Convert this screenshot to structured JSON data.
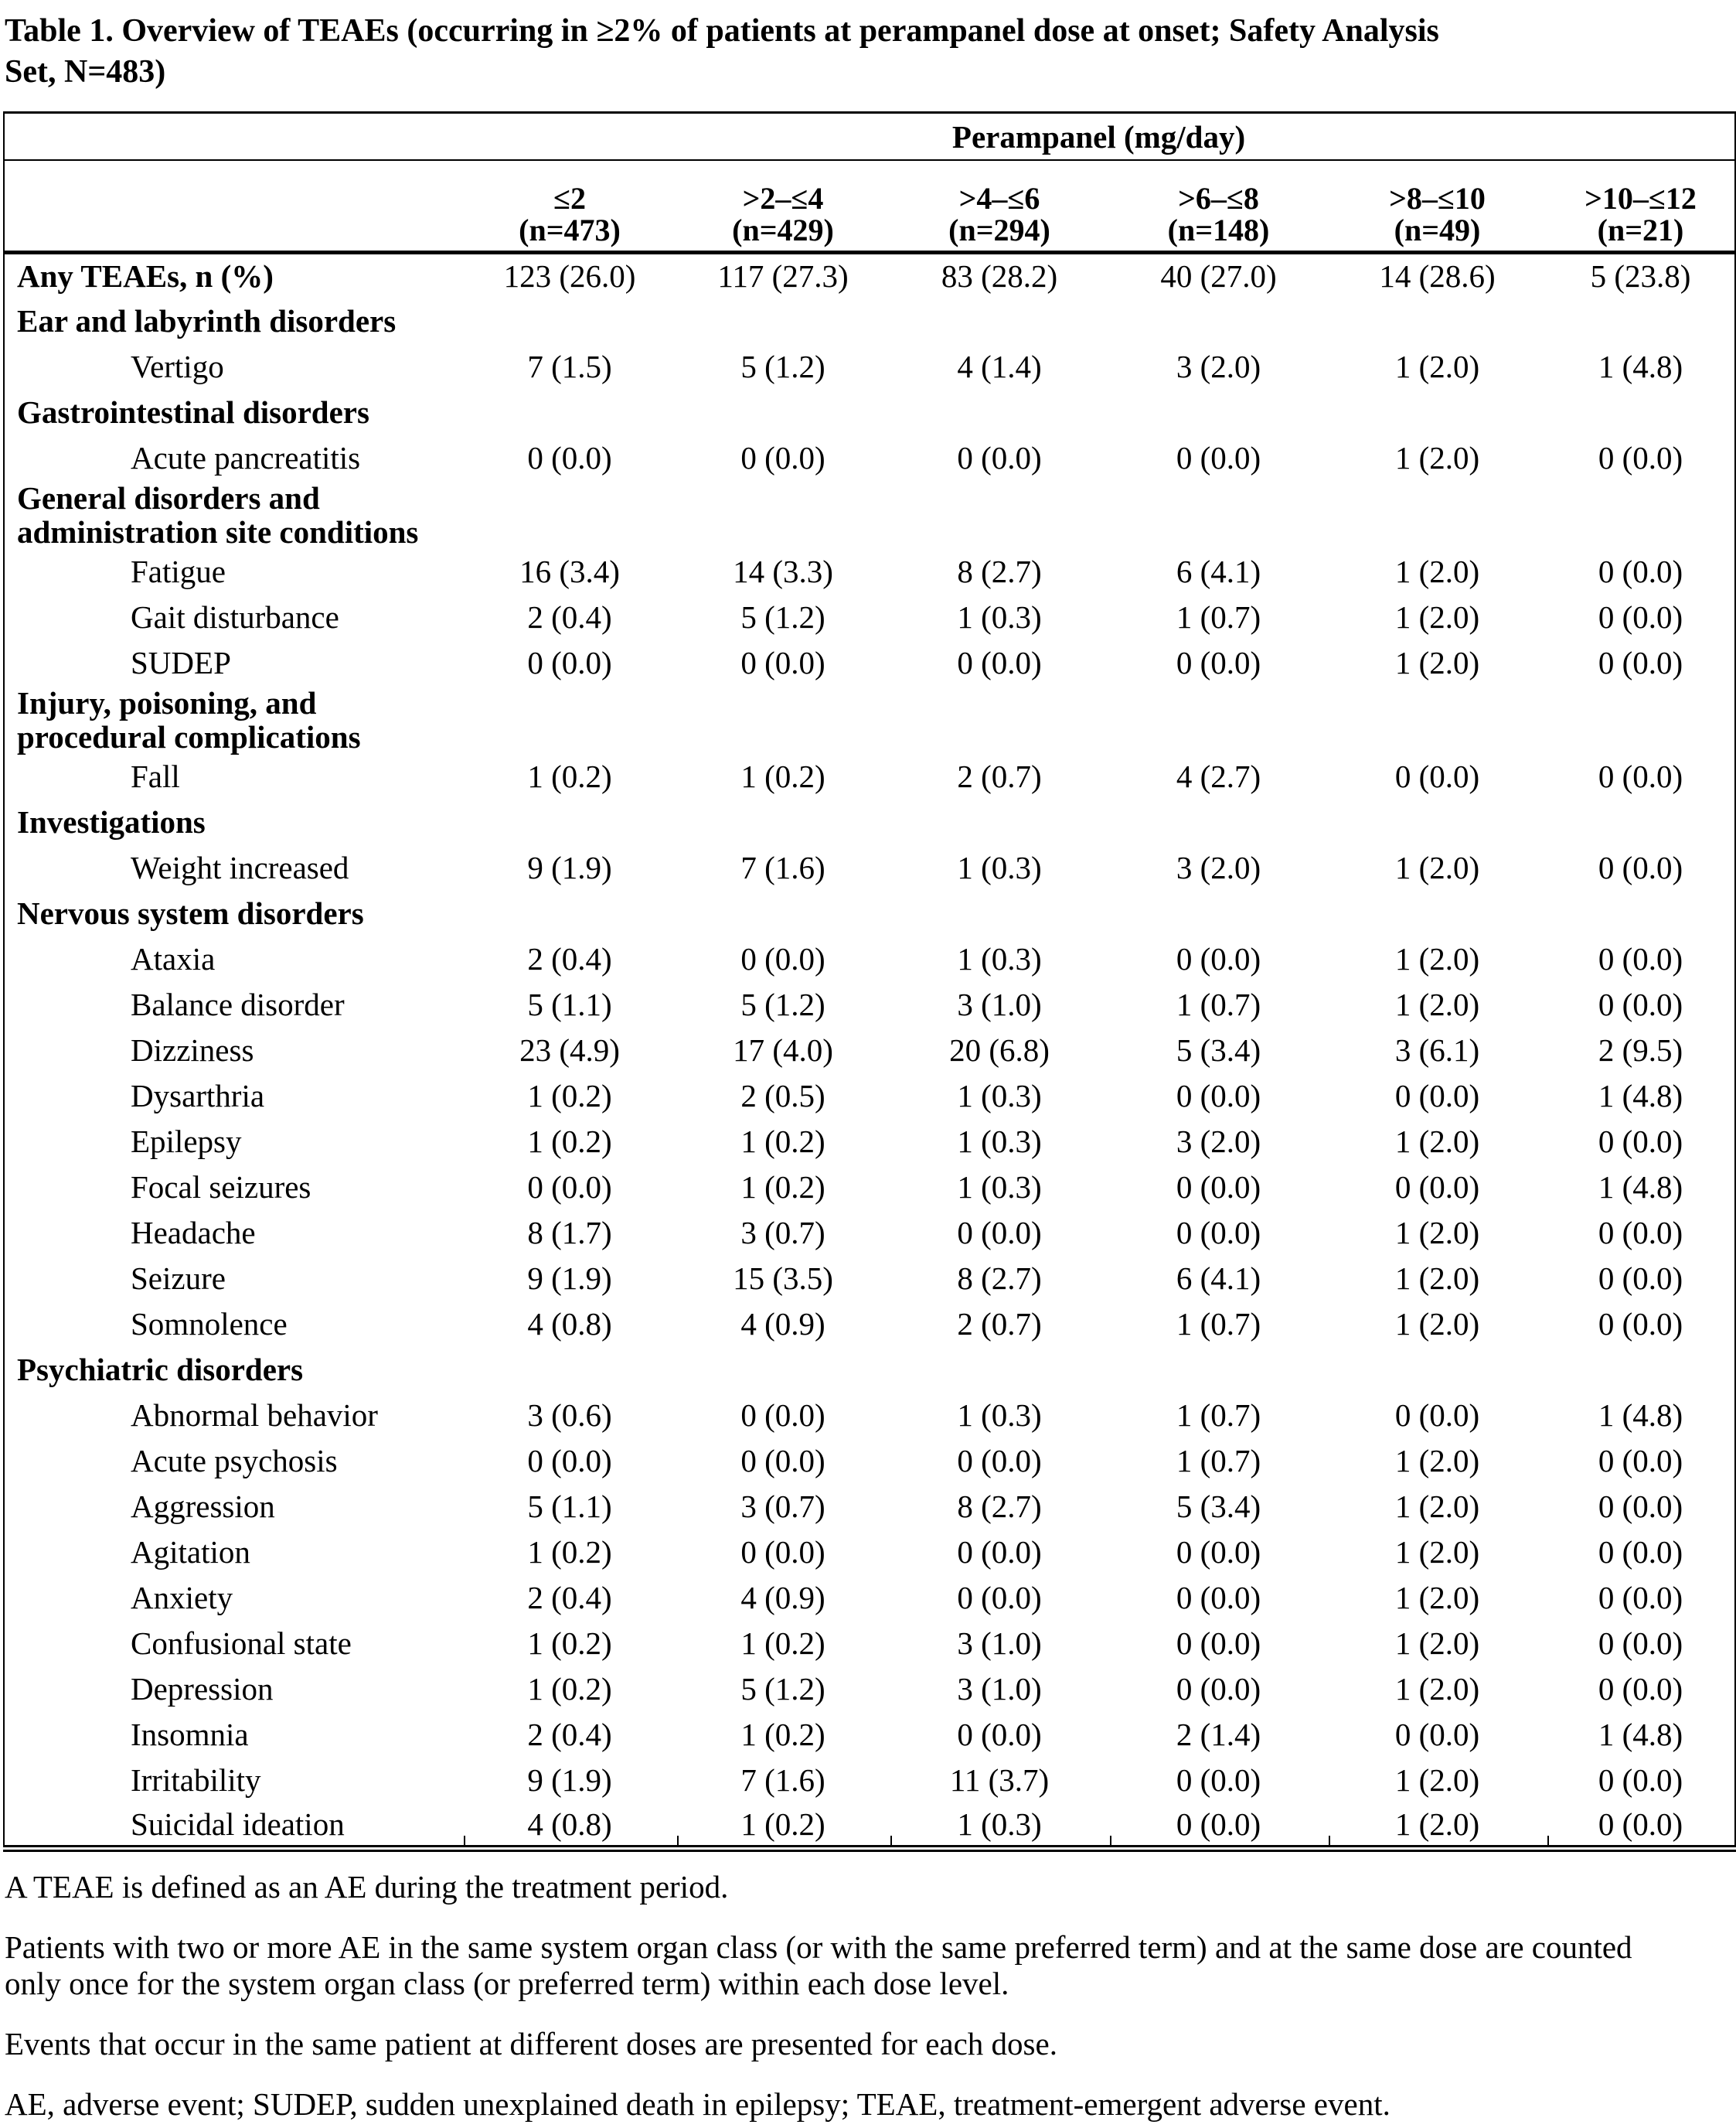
{
  "title": {
    "line1": "Table 1. Overview of TEAEs (occurring in ≥2% of patients at perampanel dose at onset; Safety Analysis",
    "line2": "Set, N=483)"
  },
  "table": {
    "spanner": "Perampanel (mg/day)",
    "columns": [
      {
        "range": "≤2",
        "n": "(n=473)"
      },
      {
        "range": ">2–≤4",
        "n": "(n=429)"
      },
      {
        "range": ">4–≤6",
        "n": "(n=294)"
      },
      {
        "range": ">6–≤8",
        "n": "(n=148)"
      },
      {
        "range": ">8–≤10",
        "n": "(n=49)"
      },
      {
        "range": ">10–≤12",
        "n": "(n=21)"
      }
    ],
    "rows": [
      {
        "kind": "any",
        "label": "Any TEAEs, n (%)",
        "values": [
          "123 (26.0)",
          "117 (27.3)",
          "83 (28.2)",
          "40 (27.0)",
          "14 (28.6)",
          "5 (23.8)"
        ]
      },
      {
        "kind": "category",
        "label": "Ear and labyrinth disorders"
      },
      {
        "kind": "event",
        "label": "Vertigo",
        "values": [
          "7 (1.5)",
          "5 (1.2)",
          "4 (1.4)",
          "3 (2.0)",
          "1 (2.0)",
          "1 (4.8)"
        ]
      },
      {
        "kind": "category",
        "label": "Gastrointestinal disorders"
      },
      {
        "kind": "event",
        "label": "Acute pancreatitis",
        "values": [
          "0 (0.0)",
          "0 (0.0)",
          "0 (0.0)",
          "0 (0.0)",
          "1 (2.0)",
          "0 (0.0)"
        ]
      },
      {
        "kind": "category",
        "label": "General disorders and administration site conditions"
      },
      {
        "kind": "event",
        "label": "Fatigue",
        "values": [
          "16 (3.4)",
          "14 (3.3)",
          "8 (2.7)",
          "6 (4.1)",
          "1 (2.0)",
          "0 (0.0)"
        ]
      },
      {
        "kind": "event",
        "label": "Gait disturbance",
        "values": [
          "2 (0.4)",
          "5 (1.2)",
          "1 (0.3)",
          "1 (0.7)",
          "1 (2.0)",
          "0 (0.0)"
        ]
      },
      {
        "kind": "event",
        "label": "SUDEP",
        "values": [
          "0 (0.0)",
          "0 (0.0)",
          "0 (0.0)",
          "0 (0.0)",
          "1 (2.0)",
          "0 (0.0)"
        ]
      },
      {
        "kind": "category",
        "label": "Injury, poisoning, and procedural complications"
      },
      {
        "kind": "event",
        "label": "Fall",
        "values": [
          "1 (0.2)",
          "1 (0.2)",
          "2 (0.7)",
          "4 (2.7)",
          "0 (0.0)",
          "0 (0.0)"
        ]
      },
      {
        "kind": "category",
        "label": "Investigations"
      },
      {
        "kind": "event",
        "label": "Weight increased",
        "values": [
          "9 (1.9)",
          "7 (1.6)",
          "1 (0.3)",
          "3 (2.0)",
          "1 (2.0)",
          "0 (0.0)"
        ]
      },
      {
        "kind": "category",
        "label": "Nervous system disorders"
      },
      {
        "kind": "event",
        "label": "Ataxia",
        "values": [
          "2 (0.4)",
          "0 (0.0)",
          "1 (0.3)",
          "0 (0.0)",
          "1 (2.0)",
          "0 (0.0)"
        ]
      },
      {
        "kind": "event",
        "label": "Balance disorder",
        "values": [
          "5 (1.1)",
          "5 (1.2)",
          "3 (1.0)",
          "1 (0.7)",
          "1 (2.0)",
          "0 (0.0)"
        ]
      },
      {
        "kind": "event",
        "label": "Dizziness",
        "values": [
          "23 (4.9)",
          "17 (4.0)",
          "20 (6.8)",
          "5 (3.4)",
          "3 (6.1)",
          "2 (9.5)"
        ]
      },
      {
        "kind": "event",
        "label": "Dysarthria",
        "values": [
          "1 (0.2)",
          "2 (0.5)",
          "1 (0.3)",
          "0 (0.0)",
          "0 (0.0)",
          "1 (4.8)"
        ]
      },
      {
        "kind": "event",
        "label": "Epilepsy",
        "values": [
          "1 (0.2)",
          "1 (0.2)",
          "1 (0.3)",
          "3 (2.0)",
          "1 (2.0)",
          "0 (0.0)"
        ]
      },
      {
        "kind": "event",
        "label": "Focal seizures",
        "values": [
          "0 (0.0)",
          "1 (0.2)",
          "1 (0.3)",
          "0 (0.0)",
          "0 (0.0)",
          "1 (4.8)"
        ]
      },
      {
        "kind": "event",
        "label": "Headache",
        "values": [
          "8 (1.7)",
          "3 (0.7)",
          "0 (0.0)",
          "0 (0.0)",
          "1 (2.0)",
          "0 (0.0)"
        ]
      },
      {
        "kind": "event",
        "label": "Seizure",
        "values": [
          "9 (1.9)",
          "15 (3.5)",
          "8 (2.7)",
          "6 (4.1)",
          "1 (2.0)",
          "0 (0.0)"
        ]
      },
      {
        "kind": "event",
        "label": "Somnolence",
        "values": [
          "4 (0.8)",
          "4 (0.9)",
          "2 (0.7)",
          "1 (0.7)",
          "1 (2.0)",
          "0 (0.0)"
        ]
      },
      {
        "kind": "category",
        "label": "Psychiatric disorders"
      },
      {
        "kind": "event",
        "label": "Abnormal behavior",
        "values": [
          "3 (0.6)",
          "0 (0.0)",
          "1 (0.3)",
          "1 (0.7)",
          "0 (0.0)",
          "1 (4.8)"
        ]
      },
      {
        "kind": "event",
        "label": "Acute psychosis",
        "values": [
          "0 (0.0)",
          "0 (0.0)",
          "0 (0.0)",
          "1 (0.7)",
          "1 (2.0)",
          "0 (0.0)"
        ]
      },
      {
        "kind": "event",
        "label": "Aggression",
        "values": [
          "5 (1.1)",
          "3 (0.7)",
          "8 (2.7)",
          "5 (3.4)",
          "1 (2.0)",
          "0 (0.0)"
        ]
      },
      {
        "kind": "event",
        "label": "Agitation",
        "values": [
          "1 (0.2)",
          "0 (0.0)",
          "0 (0.0)",
          "0 (0.0)",
          "1 (2.0)",
          "0 (0.0)"
        ]
      },
      {
        "kind": "event",
        "label": "Anxiety",
        "values": [
          "2 (0.4)",
          "4 (0.9)",
          "0 (0.0)",
          "0 (0.0)",
          "1 (2.0)",
          "0 (0.0)"
        ]
      },
      {
        "kind": "event",
        "label": "Confusional state",
        "values": [
          "1 (0.2)",
          "1 (0.2)",
          "3 (1.0)",
          "0 (0.0)",
          "1 (2.0)",
          "0 (0.0)"
        ]
      },
      {
        "kind": "event",
        "label": "Depression",
        "values": [
          "1 (0.2)",
          "5 (1.2)",
          "3 (1.0)",
          "0 (0.0)",
          "1 (2.0)",
          "0 (0.0)"
        ]
      },
      {
        "kind": "event",
        "label": "Insomnia",
        "values": [
          "2 (0.4)",
          "1 (0.2)",
          "0 (0.0)",
          "2 (1.4)",
          "0 (0.0)",
          "1 (4.8)"
        ]
      },
      {
        "kind": "event",
        "label": "Irritability",
        "values": [
          "9 (1.9)",
          "7 (1.6)",
          "11 (3.7)",
          "0 (0.0)",
          "1 (2.0)",
          "0 (0.0)"
        ]
      },
      {
        "kind": "event",
        "label": "Suicidal ideation",
        "values": [
          "4 (0.8)",
          "1 (0.2)",
          "1 (0.3)",
          "0 (0.0)",
          "1 (2.0)",
          "0 (0.0)"
        ]
      }
    ]
  },
  "footnotes": [
    "A TEAE is defined as an AE during the treatment period.",
    "Patients with two or more AE in the same system organ class (or with the same preferred term) and at the same dose are counted only once for the system organ class (or preferred term) within each dose level.",
    "Events that occur in the same patient at different doses are presented for each dose.",
    "AE, adverse event; SUDEP, sudden unexplained death in epilepsy; TEAE, treatment-emergent adverse event."
  ]
}
